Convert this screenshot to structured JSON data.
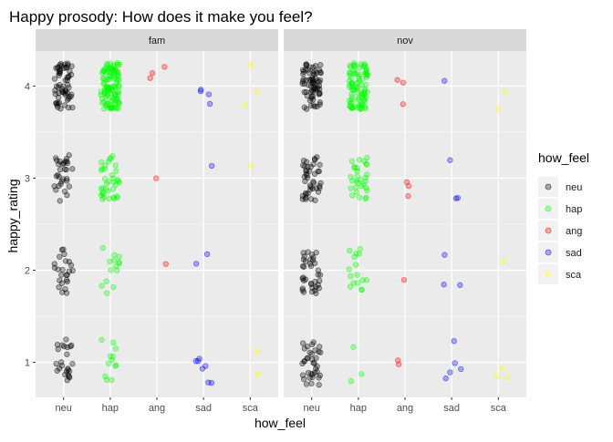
{
  "chart_data": {
    "type": "scatter",
    "title": "Happy prosody: How does it make you feel?",
    "xlabel": "how_feel",
    "ylabel": "happy_rating",
    "x_categories": [
      "neu",
      "hap",
      "ang",
      "sad",
      "sca"
    ],
    "y_ticks": [
      1,
      2,
      3,
      4
    ],
    "ylim": [
      0.62,
      4.38
    ],
    "grid": true,
    "jitter": "width 0.2, height 0.25",
    "panels": [
      {
        "name": "fam",
        "counts": {
          "neu": {
            "1": 24,
            "2": 24,
            "3": 30,
            "4": 60
          },
          "hap": {
            "1": 12,
            "2": 14,
            "3": 36,
            "4": 110
          },
          "ang": {
            "1": 0,
            "2": 1,
            "3": 1,
            "4": 3
          },
          "sad": {
            "1": 7,
            "2": 2,
            "3": 1,
            "4": 4
          },
          "sca": {
            "1": 2,
            "2": 0,
            "3": 1,
            "4": 3
          }
        }
      },
      {
        "name": "nov",
        "counts": {
          "neu": {
            "1": 36,
            "2": 36,
            "3": 42,
            "4": 70
          },
          "hap": {
            "1": 3,
            "2": 16,
            "3": 30,
            "4": 90
          },
          "ang": {
            "1": 2,
            "2": 1,
            "3": 3,
            "4": 3
          },
          "sad": {
            "1": 5,
            "2": 3,
            "3": 3,
            "4": 1
          },
          "sca": {
            "1": 3,
            "2": 1,
            "3": 0,
            "4": 2
          }
        }
      }
    ],
    "legend": {
      "title": "how_feel",
      "placement": "right",
      "entries": [
        {
          "label": "neu",
          "color": "#000000"
        },
        {
          "label": "hap",
          "color": "#00ff00"
        },
        {
          "label": "ang",
          "color": "#ff0000"
        },
        {
          "label": "sad",
          "color": "#0000ff"
        },
        {
          "label": "sca",
          "color": "#ffff00"
        }
      ]
    },
    "colors": {
      "panel_background": "#ebebeb",
      "strip_background": "#d9d9d9",
      "gridline": "#ffffff",
      "point_alpha": 0.3
    }
  }
}
